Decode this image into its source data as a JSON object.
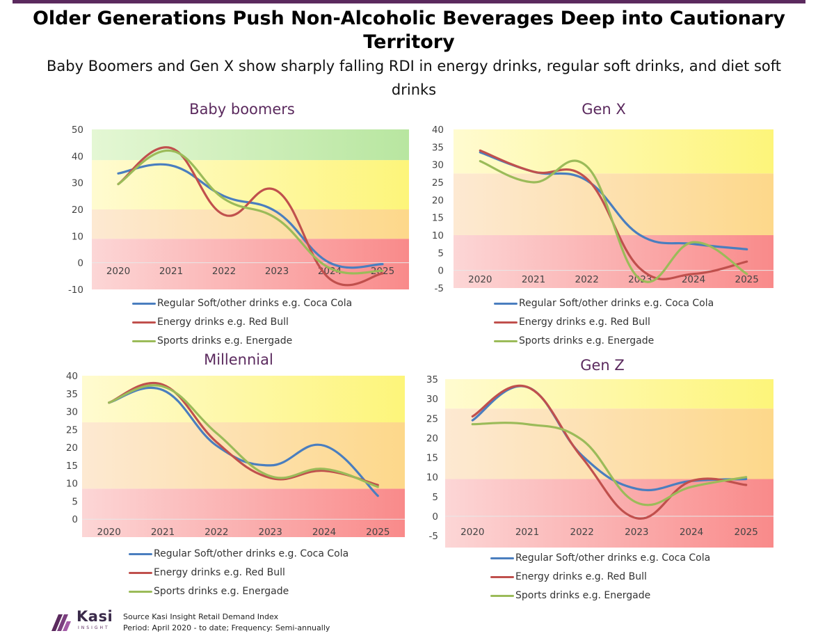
{
  "title": "Older Generations Push Non-Alcoholic Beverages Deep into Cautionary Territory",
  "subtitle": "Baby Boomers and Gen X show sharply falling RDI in energy drinks, regular soft drinks, and diet soft drinks",
  "colors": {
    "regular": "#4a7ebf",
    "energy": "#c0504d",
    "sports": "#9bbb59",
    "title": "#5b2a5e"
  },
  "legend": {
    "regular": "Regular Soft/other drinks e.g. Coca Cola",
    "energy": "Energy drinks e.g. Red Bull",
    "sports": "Sports drinks e.g. Energade"
  },
  "footer": {
    "brand": "Kasi",
    "brand_sub": "INSIGHT",
    "source": "Source Kasi Insight Retail Demand Index",
    "period": "Period: April 2020 - to date; Frequency: Semi-annually"
  },
  "chart_data": [
    {
      "type": "line",
      "title": "Baby boomers",
      "categories": [
        "2020",
        "2021",
        "2022",
        "2023",
        "2024",
        "2025"
      ],
      "ylim": [
        -10,
        50
      ],
      "yticks": [
        -10,
        0,
        10,
        20,
        30,
        40,
        50
      ],
      "bands": [
        {
          "from": -10,
          "to": 9,
          "zone": "red"
        },
        {
          "from": 9,
          "to": 20,
          "zone": "orange"
        },
        {
          "from": 20,
          "to": 38.5,
          "zone": "yellow"
        },
        {
          "from": 38.5,
          "to": 50,
          "zone": "green"
        }
      ],
      "series": [
        {
          "key": "regular",
          "name": "Regular Soft/other drinks e.g. Coca Cola",
          "values": [
            33.5,
            36.5,
            25,
            19,
            0,
            -0.5
          ]
        },
        {
          "key": "energy",
          "name": "Energy drinks e.g. Red Bull",
          "values": [
            29.5,
            43,
            18,
            27,
            -6,
            -4
          ]
        },
        {
          "key": "sports",
          "name": "Sports drinks e.g. Energade",
          "values": [
            29.5,
            42,
            24,
            16.5,
            -2,
            -3
          ]
        }
      ]
    },
    {
      "type": "line",
      "title": "Gen X",
      "categories": [
        "2020",
        "2021",
        "2022",
        "2023",
        "2024",
        "2025"
      ],
      "ylim": [
        -5,
        40
      ],
      "yticks": [
        -5,
        0,
        5,
        10,
        15,
        20,
        25,
        30,
        35,
        40
      ],
      "bands": [
        {
          "from": -5,
          "to": 10,
          "zone": "red"
        },
        {
          "from": 10,
          "to": 27.5,
          "zone": "orange"
        },
        {
          "from": 27.5,
          "to": 40,
          "zone": "yellow"
        }
      ],
      "series": [
        {
          "key": "regular",
          "name": "Regular Soft/other drinks e.g. Coca Cola",
          "values": [
            33.5,
            28,
            25.5,
            10,
            7.5,
            6
          ]
        },
        {
          "key": "energy",
          "name": "Energy drinks e.g. Red Bull",
          "values": [
            34,
            28,
            26,
            0.5,
            -1,
            2.5
          ]
        },
        {
          "key": "sports",
          "name": "Sports drinks e.g. Energade",
          "values": [
            31,
            25,
            29.5,
            -2.5,
            8,
            -1
          ]
        }
      ]
    },
    {
      "type": "line",
      "title": "Millennial",
      "categories": [
        "2020",
        "2021",
        "2022",
        "2023",
        "2024",
        "2025"
      ],
      "ylim": [
        -5,
        40
      ],
      "yticks": [
        0,
        5,
        10,
        15,
        20,
        25,
        30,
        35,
        40
      ],
      "bands": [
        {
          "from": -5,
          "to": 8.5,
          "zone": "red"
        },
        {
          "from": 8.5,
          "to": 27,
          "zone": "orange"
        },
        {
          "from": 27,
          "to": 40,
          "zone": "yellow"
        }
      ],
      "series": [
        {
          "key": "regular",
          "name": "Regular Soft/other drinks e.g. Coca Cola",
          "values": [
            32.5,
            36,
            20.5,
            15,
            20.5,
            6.5
          ]
        },
        {
          "key": "energy",
          "name": "Energy drinks e.g. Red Bull",
          "values": [
            32.5,
            37.5,
            21.5,
            11.5,
            13.5,
            9.5
          ]
        },
        {
          "key": "sports",
          "name": "Sports drinks e.g. Energade",
          "values": [
            32.5,
            37,
            24,
            12,
            14,
            9
          ]
        }
      ]
    },
    {
      "type": "line",
      "title": "Gen Z",
      "categories": [
        "2020",
        "2021",
        "2022",
        "2023",
        "2024",
        "2025"
      ],
      "ylim": [
        -8,
        35
      ],
      "yticks": [
        -5,
        0,
        5,
        10,
        15,
        20,
        25,
        30,
        35
      ],
      "bands": [
        {
          "from": -8,
          "to": 9.5,
          "zone": "red"
        },
        {
          "from": 9.5,
          "to": 27.5,
          "zone": "orange"
        },
        {
          "from": 27.5,
          "to": 35,
          "zone": "yellow"
        }
      ],
      "series": [
        {
          "key": "regular",
          "name": "Regular Soft/other drinks e.g. Coca Cola",
          "values": [
            24.5,
            33,
            15.5,
            7,
            9,
            9.5
          ]
        },
        {
          "key": "energy",
          "name": "Energy drinks e.g. Red Bull",
          "values": [
            25.5,
            33,
            15,
            -0.5,
            9,
            8
          ]
        },
        {
          "key": "sports",
          "name": "Sports drinks e.g. Energade",
          "values": [
            23.5,
            23.5,
            19.5,
            3.5,
            7.5,
            10
          ]
        }
      ]
    }
  ]
}
